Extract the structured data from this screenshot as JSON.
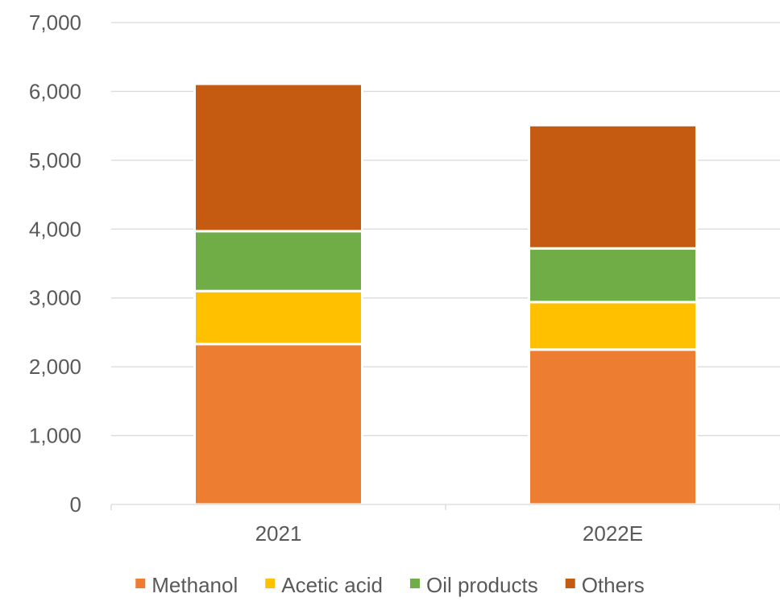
{
  "chart_data": {
    "type": "bar",
    "stacked": true,
    "categories": [
      "2021",
      "2022E"
    ],
    "series": [
      {
        "name": "Methanol",
        "values": [
          2330,
          2250
        ],
        "color": "#ED7D31"
      },
      {
        "name": "Acetic acid",
        "values": [
          770,
          690
        ],
        "color": "#FFC000"
      },
      {
        "name": "Oil products",
        "values": [
          870,
          780
        ],
        "color": "#70AD47"
      },
      {
        "name": "Others",
        "values": [
          2140,
          1790
        ],
        "color": "#C55A11"
      }
    ],
    "ylim": [
      0,
      7000
    ],
    "yticks": [
      {
        "value": 0,
        "label": "0"
      },
      {
        "value": 1000,
        "label": "1,000"
      },
      {
        "value": 2000,
        "label": "2,000"
      },
      {
        "value": 3000,
        "label": "3,000"
      },
      {
        "value": 4000,
        "label": "4,000"
      },
      {
        "value": 5000,
        "label": "5,000"
      },
      {
        "value": 6000,
        "label": "6,000"
      },
      {
        "value": 7000,
        "label": "7,000"
      }
    ],
    "grid": true,
    "legend_position": "bottom",
    "title": "",
    "xlabel": "",
    "ylabel": ""
  }
}
